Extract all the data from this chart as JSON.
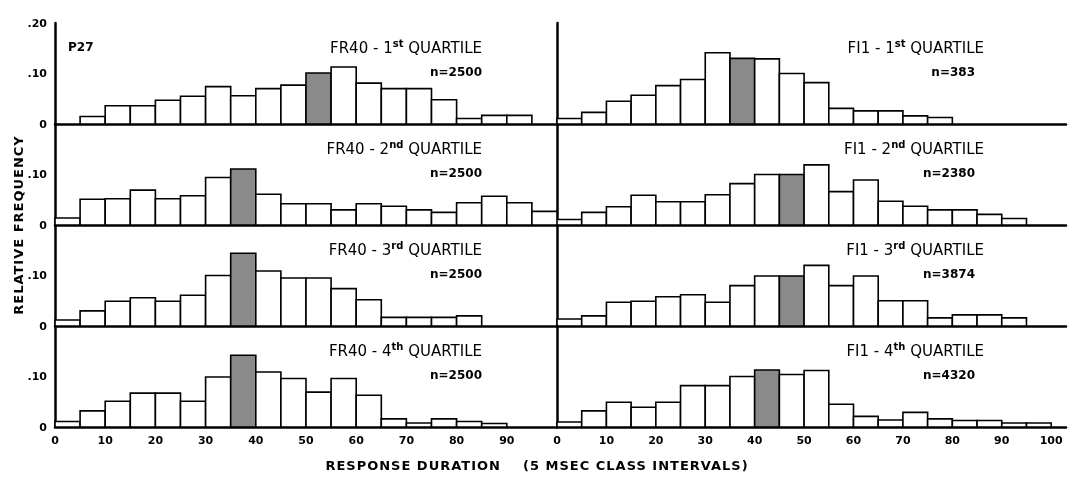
{
  "chart_data": [
    {
      "type": "histogram",
      "title": "FR40 - 1$^{st}$ QUARTILE",
      "subtitle": "n=2500",
      "annotations": [
        "P27"
      ],
      "ylabel": "RELATIVE FREQUENCY",
      "bins": [
        5,
        10,
        15,
        20,
        25,
        30,
        35,
        40,
        45,
        50,
        55,
        60,
        65,
        70,
        75,
        80,
        85,
        90,
        95
      ],
      "values": [
        0.015,
        0.036,
        0.036,
        0.047,
        0.055,
        0.074,
        0.056,
        0.07,
        0.077,
        0.101,
        0.113,
        0.081,
        0.07,
        0.07,
        0.048,
        0.011,
        0.017,
        0.017
      ],
      "colors": [
        "#ffffff",
        "#ffffff",
        "#ffffff",
        "#ffffff",
        "#ffffff",
        "#ffffff",
        "#ffffff",
        "#ffffff",
        "#ffffff",
        "#8a8a8a",
        "#ffffff",
        "#ffffff",
        "#ffffff",
        "#ffffff",
        "#ffffff",
        "#ffffff",
        "#ffffff",
        "#ffffff"
      ],
      "xlim": [
        0,
        100
      ],
      "ylim": [
        0,
        0.2
      ],
      "yticks": [
        {
          "value": 0,
          "label": "0"
        },
        {
          "value": 0.1,
          "label": ".10"
        },
        {
          "value": 0.2,
          "label": ".20"
        }
      ],
      "tick_labels": "y"
    },
    {
      "type": "histogram",
      "title": "FI1 - 1$^{st}$ QUARTILE",
      "subtitle": "n=383",
      "bins": [
        0,
        5,
        10,
        15,
        20,
        25,
        30,
        35,
        40,
        45,
        50,
        55,
        60,
        65,
        70,
        75,
        80
      ],
      "values": [
        0.011,
        0.023,
        0.045,
        0.057,
        0.076,
        0.088,
        0.141,
        0.13,
        0.129,
        0.1,
        0.082,
        0.031,
        0.026,
        0.026,
        0.016,
        0.013
      ],
      "colors": [
        "#ffffff",
        "#ffffff",
        "#ffffff",
        "#ffffff",
        "#ffffff",
        "#ffffff",
        "#ffffff",
        "#8a8a8a",
        "#ffffff",
        "#ffffff",
        "#ffffff",
        "#ffffff",
        "#ffffff",
        "#ffffff",
        "#ffffff",
        "#ffffff"
      ],
      "xlim": [
        0,
        103
      ],
      "ylim": [
        0,
        0.2
      ],
      "tick_labels": false
    },
    {
      "type": "histogram",
      "title": "FR40 - 2$^{nd}$ QUARTILE",
      "subtitle": "n=2500",
      "bins": [
        0,
        5,
        10,
        15,
        20,
        25,
        30,
        35,
        40,
        45,
        50,
        55,
        60,
        65,
        70,
        75,
        80,
        85,
        90,
        95,
        100
      ],
      "values": [
        0.014,
        0.051,
        0.052,
        0.069,
        0.052,
        0.058,
        0.094,
        0.111,
        0.061,
        0.042,
        0.042,
        0.03,
        0.042,
        0.037,
        0.03,
        0.025,
        0.044,
        0.057,
        0.044,
        0.027
      ],
      "colors": [
        "#ffffff",
        "#ffffff",
        "#ffffff",
        "#ffffff",
        "#ffffff",
        "#ffffff",
        "#ffffff",
        "#8a8a8a",
        "#ffffff",
        "#ffffff",
        "#ffffff",
        "#ffffff",
        "#ffffff",
        "#ffffff",
        "#ffffff",
        "#ffffff",
        "#ffffff",
        "#ffffff",
        "#ffffff",
        "#ffffff"
      ],
      "xlim": [
        0,
        100
      ],
      "ylim": [
        0,
        0.2
      ],
      "yticks": [
        {
          "value": 0,
          "label": "0"
        },
        {
          "value": 0.1,
          "label": ".10"
        }
      ],
      "tick_labels": "y"
    },
    {
      "type": "histogram",
      "title": "FI1 - 2$^{nd}$ QUARTILE",
      "subtitle": "n=2380",
      "bins": [
        0,
        5,
        10,
        15,
        20,
        25,
        30,
        35,
        40,
        45,
        50,
        55,
        60,
        65,
        70,
        75,
        80,
        85,
        90,
        95
      ],
      "values": [
        0.011,
        0.025,
        0.036,
        0.059,
        0.046,
        0.046,
        0.06,
        0.082,
        0.1,
        0.1,
        0.119,
        0.066,
        0.089,
        0.047,
        0.037,
        0.03,
        0.03,
        0.021,
        0.013
      ],
      "colors": [
        "#ffffff",
        "#ffffff",
        "#ffffff",
        "#ffffff",
        "#ffffff",
        "#ffffff",
        "#ffffff",
        "#ffffff",
        "#ffffff",
        "#8a8a8a",
        "#ffffff",
        "#ffffff",
        "#ffffff",
        "#ffffff",
        "#ffffff",
        "#ffffff",
        "#ffffff",
        "#ffffff",
        "#ffffff"
      ],
      "xlim": [
        0,
        103
      ],
      "ylim": [
        0,
        0.2
      ],
      "tick_labels": false
    },
    {
      "type": "histogram",
      "title": "FR40 - 3$^{rd}$ QUARTILE",
      "subtitle": "n=2500",
      "bins": [
        0,
        5,
        10,
        15,
        20,
        25,
        30,
        35,
        40,
        45,
        50,
        55,
        60,
        65,
        70,
        75,
        80,
        85
      ],
      "values": [
        0.012,
        0.03,
        0.049,
        0.056,
        0.049,
        0.061,
        0.1,
        0.144,
        0.109,
        0.095,
        0.095,
        0.074,
        0.052,
        0.017,
        0.017,
        0.017,
        0.02
      ],
      "colors": [
        "#ffffff",
        "#ffffff",
        "#ffffff",
        "#ffffff",
        "#ffffff",
        "#ffffff",
        "#ffffff",
        "#8a8a8a",
        "#ffffff",
        "#ffffff",
        "#ffffff",
        "#ffffff",
        "#ffffff",
        "#ffffff",
        "#ffffff",
        "#ffffff",
        "#ffffff"
      ],
      "xlim": [
        0,
        100
      ],
      "ylim": [
        0,
        0.2
      ],
      "yticks": [
        {
          "value": 0,
          "label": "0"
        },
        {
          "value": 0.1,
          "label": ".10"
        }
      ],
      "tick_labels": "y"
    },
    {
      "type": "histogram",
      "title": "FI1 - 3$^{rd}$ QUARTILE",
      "subtitle": "n=3874",
      "bins": [
        0,
        5,
        10,
        15,
        20,
        25,
        30,
        35,
        40,
        45,
        50,
        55,
        60,
        65,
        70,
        75,
        80,
        85,
        90,
        95
      ],
      "values": [
        0.014,
        0.02,
        0.047,
        0.049,
        0.058,
        0.062,
        0.047,
        0.08,
        0.099,
        0.099,
        0.12,
        0.08,
        0.099,
        0.05,
        0.05,
        0.016,
        0.022,
        0.022,
        0.016
      ],
      "colors": [
        "#ffffff",
        "#ffffff",
        "#ffffff",
        "#ffffff",
        "#ffffff",
        "#ffffff",
        "#ffffff",
        "#ffffff",
        "#ffffff",
        "#8a8a8a",
        "#ffffff",
        "#ffffff",
        "#ffffff",
        "#ffffff",
        "#ffffff",
        "#ffffff",
        "#ffffff",
        "#ffffff",
        "#ffffff"
      ],
      "xlim": [
        0,
        103
      ],
      "ylim": [
        0,
        0.2
      ],
      "tick_labels": false
    },
    {
      "type": "histogram",
      "title": "FR40 - 4$^{th}$ QUARTILE",
      "subtitle": "n=2500",
      "xlabel": "RESPONSE DURATION    (5 MSEC CLASS INTERVALS)",
      "bins": [
        0,
        5,
        10,
        15,
        20,
        25,
        30,
        35,
        40,
        45,
        50,
        55,
        60,
        65,
        70,
        75,
        80,
        85,
        90
      ],
      "values": [
        0.011,
        0.032,
        0.051,
        0.067,
        0.067,
        0.051,
        0.099,
        0.142,
        0.109,
        0.096,
        0.069,
        0.096,
        0.063,
        0.016,
        0.008,
        0.016,
        0.011,
        0.007
      ],
      "colors": [
        "#ffffff",
        "#ffffff",
        "#ffffff",
        "#ffffff",
        "#ffffff",
        "#ffffff",
        "#ffffff",
        "#8a8a8a",
        "#ffffff",
        "#ffffff",
        "#ffffff",
        "#ffffff",
        "#ffffff",
        "#ffffff",
        "#ffffff",
        "#ffffff",
        "#ffffff",
        "#ffffff"
      ],
      "xlim": [
        0,
        100
      ],
      "xticks": [
        0,
        10,
        20,
        30,
        40,
        50,
        60,
        70,
        80,
        90
      ],
      "ylim": [
        0,
        0.2
      ],
      "yticks": [
        {
          "value": 0,
          "label": "0"
        },
        {
          "value": 0.1,
          "label": ".10"
        }
      ]
    },
    {
      "type": "histogram",
      "title": "FI1 - 4$^{th}$ QUARTILE",
      "subtitle": "n=4320",
      "bins": [
        0,
        5,
        10,
        15,
        20,
        25,
        30,
        35,
        40,
        45,
        50,
        55,
        60,
        65,
        70,
        75,
        80,
        85,
        90,
        95,
        100
      ],
      "values": [
        0.01,
        0.032,
        0.049,
        0.039,
        0.049,
        0.082,
        0.082,
        0.1,
        0.113,
        0.104,
        0.112,
        0.045,
        0.021,
        0.014,
        0.029,
        0.016,
        0.013,
        0.013,
        0.008,
        0.008
      ],
      "colors": [
        "#ffffff",
        "#ffffff",
        "#ffffff",
        "#ffffff",
        "#ffffff",
        "#ffffff",
        "#ffffff",
        "#ffffff",
        "#8a8a8a",
        "#ffffff",
        "#ffffff",
        "#ffffff",
        "#ffffff",
        "#ffffff",
        "#ffffff",
        "#ffffff",
        "#ffffff",
        "#ffffff",
        "#ffffff",
        "#ffffff"
      ],
      "xlim": [
        0,
        103
      ],
      "xticks": [
        0,
        10,
        20,
        30,
        40,
        50,
        60,
        70,
        80,
        90,
        100
      ],
      "ylim": [
        0,
        0.2
      ],
      "tick_labels": "x"
    }
  ]
}
